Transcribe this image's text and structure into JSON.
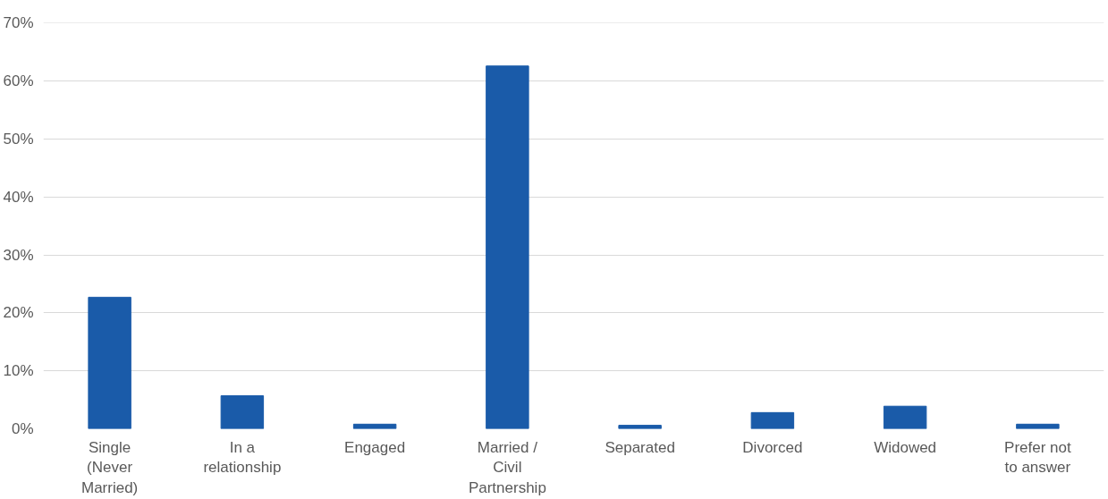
{
  "chart_data": {
    "type": "bar",
    "categories": [
      "Single (Never Married)",
      "In a relationship",
      "Engaged",
      "Married / Civil Partnership",
      "Separated",
      "Divorced",
      "Widowed",
      "Prefer not to answer"
    ],
    "values": [
      22.7,
      5.7,
      0.8,
      62.6,
      0.6,
      2.8,
      3.9,
      0.8
    ],
    "color": "#1a5ba9",
    "ylim": [
      0,
      70
    ],
    "yticks": [
      {
        "value": 0,
        "label": "0%"
      },
      {
        "value": 10,
        "label": "10%"
      },
      {
        "value": 20,
        "label": "20%"
      },
      {
        "value": 30,
        "label": "30%"
      },
      {
        "value": 40,
        "label": "40%"
      },
      {
        "value": 50,
        "label": "50%"
      },
      {
        "value": 60,
        "label": "60%"
      },
      {
        "value": 70,
        "label": "70%"
      }
    ],
    "grid": "y"
  }
}
